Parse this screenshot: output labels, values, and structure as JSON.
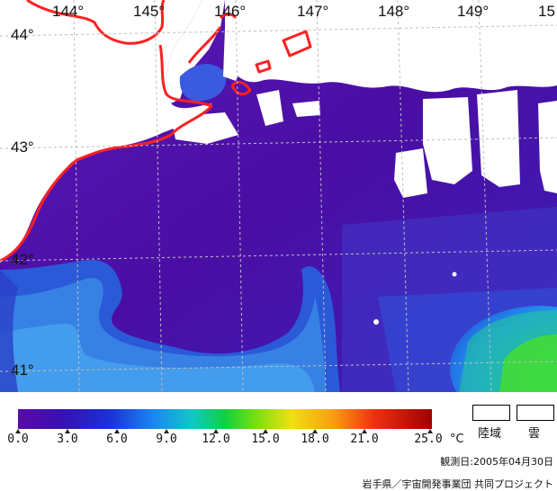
{
  "map": {
    "longitude_labels": [
      "144°",
      "145°",
      "146°",
      "147°",
      "148°",
      "149°",
      "15"
    ],
    "latitude_labels": [
      "44°",
      "43°",
      "42°",
      "41°"
    ]
  },
  "legend": {
    "tick_labels": [
      "0.0",
      "3.0",
      "6.0",
      "9.0",
      "12.0",
      "15.0",
      "18.0",
      "21.0",
      "25.0"
    ],
    "unit": "°C",
    "land_label": "陸域",
    "cloud_label": "雲"
  },
  "observation_date": "観測日:2005年04月30日",
  "credit": "岩手県／宇宙開発事業団 共同プロジェクト",
  "colors": {
    "land": "#ffffff",
    "coastline": "#ff2020",
    "cloud": "#ffffff",
    "sea_base": "#4a10a0",
    "grid": "#bbbbbb"
  }
}
